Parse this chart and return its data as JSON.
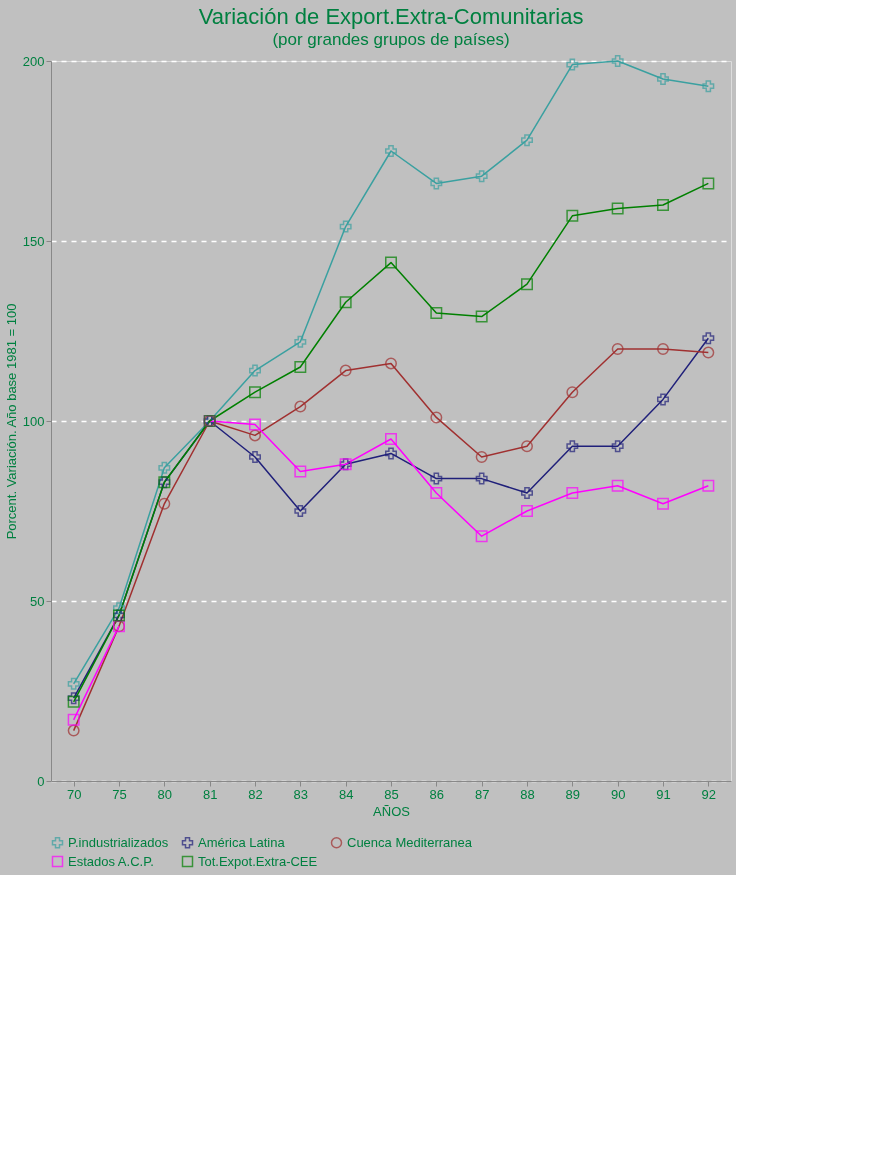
{
  "chart_data": {
    "type": "line",
    "title": "Variación de Export.Extra-Comunitarias",
    "subtitle": "(por grandes grupos de países)",
    "xlabel": "AÑOS",
    "ylabel": "Porcent. Variación. Año base 1981 = 100",
    "categories": [
      "70",
      "75",
      "80",
      "81",
      "82",
      "83",
      "84",
      "85",
      "86",
      "87",
      "88",
      "89",
      "90",
      "91",
      "92"
    ],
    "ylim": [
      0,
      200
    ],
    "yticks": [
      0,
      50,
      100,
      150,
      200
    ],
    "grid": "y",
    "legend": "bottom",
    "line_style": "solid",
    "series": [
      {
        "name": "P.industrializados",
        "color": "#3aa0a0",
        "marker": "cross",
        "values": [
          27,
          48,
          87,
          100,
          114,
          122,
          154,
          175,
          166,
          168,
          178,
          199,
          200,
          195,
          193
        ]
      },
      {
        "name": "América Latina",
        "color": "#20207a",
        "marker": "cross",
        "values": [
          23,
          46,
          83,
          100,
          90,
          75,
          88,
          91,
          84,
          84,
          80,
          93,
          93,
          106,
          123
        ]
      },
      {
        "name": "Cuenca Mediterranea",
        "color": "#a03030",
        "marker": "circle",
        "values": [
          14,
          43,
          77,
          100,
          96,
          104,
          114,
          116,
          101,
          90,
          93,
          108,
          120,
          120,
          119
        ]
      },
      {
        "name": "Estados A.C.P.",
        "color": "#ff00ff",
        "marker": "square",
        "values": [
          17,
          43,
          null,
          100,
          99,
          86,
          88,
          95,
          80,
          68,
          75,
          80,
          82,
          77,
          82
        ]
      },
      {
        "name": "Tot.Expot.Extra-CEE",
        "color": "#008000",
        "marker": "square",
        "values": [
          22,
          46,
          83,
          100,
          108,
          115,
          133,
          144,
          130,
          129,
          138,
          157,
          159,
          160,
          166
        ]
      }
    ]
  }
}
